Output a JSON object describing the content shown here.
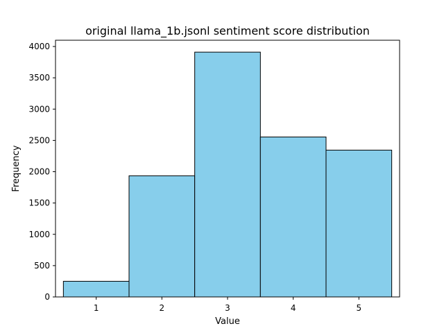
{
  "chart_data": {
    "type": "bar",
    "title": "original llama_1b.jsonl sentiment score distribution",
    "xlabel": "Value",
    "ylabel": "Frequency",
    "categories": [
      "1",
      "2",
      "3",
      "4",
      "5"
    ],
    "values": [
      250,
      1935,
      3910,
      2555,
      2345
    ],
    "xlim": [
      0.38,
      5.62
    ],
    "ylim": [
      0,
      4100
    ],
    "yticks": [
      0,
      500,
      1000,
      1500,
      2000,
      2500,
      3000,
      3500,
      4000
    ],
    "grid": false,
    "bar_color": "#87ceeb",
    "edge_color": "#000000"
  }
}
